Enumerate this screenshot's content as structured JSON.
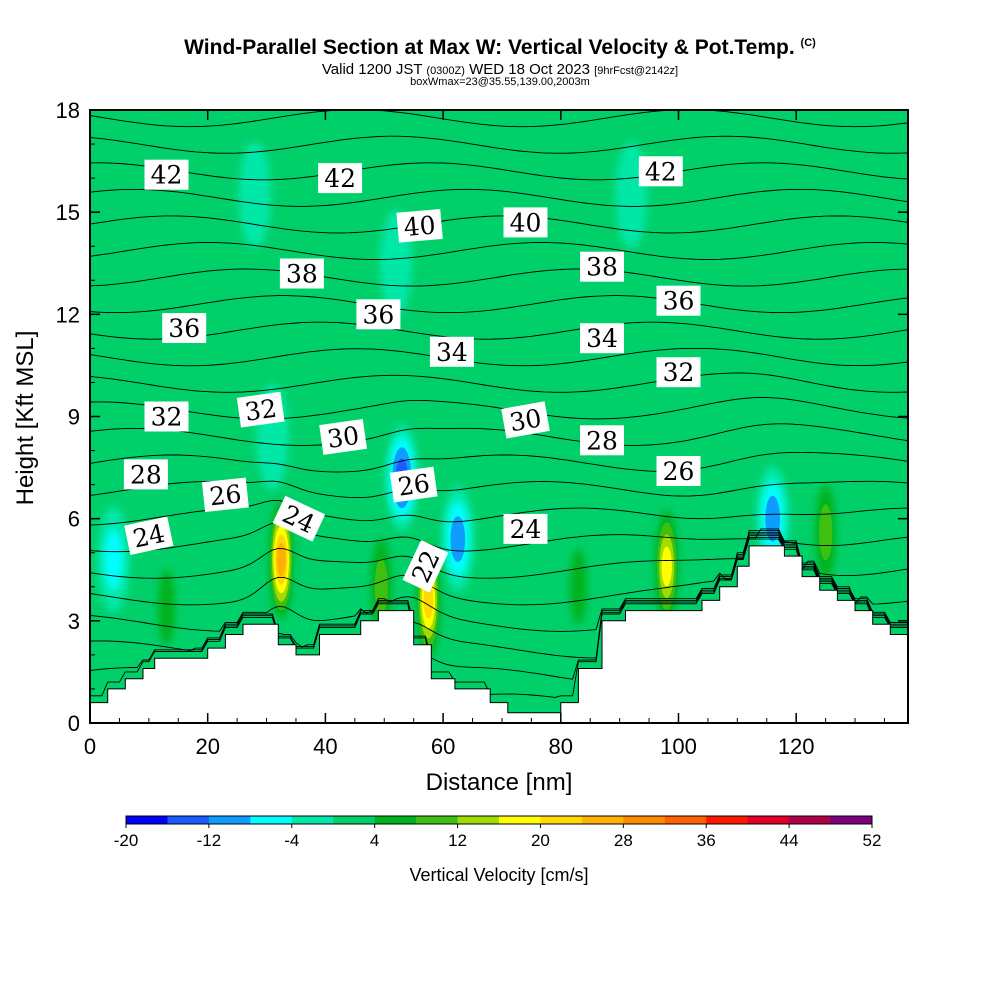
{
  "header": {
    "title": "Wind-Parallel Section at Max W: Vertical Velocity & Pot.Temp.",
    "title_mark": "(C)",
    "valid_prefix": "Valid 1200 JST",
    "valid_utc": "(0300Z)",
    "valid_date": "WED 18 Oct 2023",
    "forecast_info": "[9hrFcst@2142z]",
    "box_info": "boxWmax=23@35.55,139.00,2003m"
  },
  "chart_data": {
    "type": "heatmap",
    "xlabel": "Distance [nm]",
    "ylabel": "Height [Kft MSL]",
    "xlim": [
      0,
      139
    ],
    "ylim": [
      0,
      18
    ],
    "x_ticks": [
      0,
      20,
      40,
      60,
      80,
      100,
      120
    ],
    "y_ticks": [
      0,
      3,
      6,
      9,
      12,
      15,
      18
    ],
    "colorbar": {
      "label": "Vertical Velocity [cm/s]",
      "tick_labels": [
        "-20",
        "-12",
        "-4",
        "4",
        "12",
        "20",
        "28",
        "36",
        "44",
        "52"
      ],
      "levels": [
        -20,
        -16,
        -12,
        -8,
        -4,
        0,
        4,
        8,
        12,
        16,
        20,
        24,
        28,
        32,
        36,
        40,
        44,
        48,
        52,
        56
      ],
      "colors": [
        "#0000ff",
        "#1a5cff",
        "#0f9cff",
        "#00ffff",
        "#00e8a8",
        "#00d06a",
        "#00b21c",
        "#3fbf10",
        "#a0dc00",
        "#ffff00",
        "#ffd800",
        "#ffb000",
        "#ff8c00",
        "#ff6000",
        "#ff1800",
        "#e0002a",
        "#b0004a",
        "#7a0080"
      ]
    },
    "background_class": "0 to 4",
    "updrafts": [
      {
        "x": 32.5,
        "y": 4.8,
        "w": 28
      },
      {
        "x": 57.5,
        "y": 3.6,
        "w": 22
      },
      {
        "x": 98,
        "y": 4.6,
        "w": 18
      },
      {
        "x": 125,
        "y": 5.6,
        "w": 12
      },
      {
        "x": 49.5,
        "y": 4.0,
        "w": 10
      },
      {
        "x": 13,
        "y": 3.4,
        "w": 7
      },
      {
        "x": 83,
        "y": 4.0,
        "w": 6
      }
    ],
    "downdrafts": [
      {
        "x": 53,
        "y": 7.2,
        "w": -14
      },
      {
        "x": 62.5,
        "y": 5.4,
        "w": -10
      },
      {
        "x": 116,
        "y": 6.0,
        "w": -12
      },
      {
        "x": 4,
        "y": 4.8,
        "w": -6
      },
      {
        "x": 31,
        "y": 8.4,
        "w": -5
      },
      {
        "x": 52,
        "y": 13.5,
        "w": -5
      },
      {
        "x": 92,
        "y": 15.5,
        "w": -5
      },
      {
        "x": 28,
        "y": 15.5,
        "w": -4
      }
    ],
    "terrain": [
      [
        0,
        0.6
      ],
      [
        3,
        0.6
      ],
      [
        3,
        1.0
      ],
      [
        6,
        1.0
      ],
      [
        6,
        1.3
      ],
      [
        9,
        1.3
      ],
      [
        9,
        1.6
      ],
      [
        11,
        1.6
      ],
      [
        11,
        1.9
      ],
      [
        20,
        1.9
      ],
      [
        20,
        2.2
      ],
      [
        23,
        2.2
      ],
      [
        23,
        2.6
      ],
      [
        26,
        2.6
      ],
      [
        26,
        2.9
      ],
      [
        32,
        2.9
      ],
      [
        32,
        2.3
      ],
      [
        35,
        2.3
      ],
      [
        35,
        2.0
      ],
      [
        39,
        2.0
      ],
      [
        39,
        2.6
      ],
      [
        46,
        2.6
      ],
      [
        46,
        3.0
      ],
      [
        49,
        3.0
      ],
      [
        49,
        3.3
      ],
      [
        55,
        3.3
      ],
      [
        55,
        2.3
      ],
      [
        58,
        2.3
      ],
      [
        58,
        1.3
      ],
      [
        62,
        1.3
      ],
      [
        62,
        1.0
      ],
      [
        68,
        1.0
      ],
      [
        68,
        0.6
      ],
      [
        71,
        0.6
      ],
      [
        71,
        0.3
      ],
      [
        80,
        0.3
      ],
      [
        80,
        0.6
      ],
      [
        83,
        0.6
      ],
      [
        83,
        1.6
      ],
      [
        87,
        1.6
      ],
      [
        87,
        3.0
      ],
      [
        91,
        3.0
      ],
      [
        91,
        3.3
      ],
      [
        104,
        3.3
      ],
      [
        104,
        3.6
      ],
      [
        107,
        3.6
      ],
      [
        107,
        4.0
      ],
      [
        110,
        4.0
      ],
      [
        110,
        4.6
      ],
      [
        112,
        4.6
      ],
      [
        112,
        5.2
      ],
      [
        118,
        5.2
      ],
      [
        118,
        4.9
      ],
      [
        121,
        4.9
      ],
      [
        121,
        4.3
      ],
      [
        124,
        4.3
      ],
      [
        124,
        3.9
      ],
      [
        127,
        3.9
      ],
      [
        127,
        3.6
      ],
      [
        130,
        3.6
      ],
      [
        130,
        3.3
      ],
      [
        133,
        3.3
      ],
      [
        133,
        2.9
      ],
      [
        136,
        2.9
      ],
      [
        136,
        2.6
      ],
      [
        139,
        2.6
      ]
    ],
    "theta_contours": {
      "base": 20,
      "step": 1,
      "count": 23,
      "labels": [
        {
          "text": "42",
          "x": 13,
          "y": 16.1,
          "rot": 0
        },
        {
          "text": "42",
          "x": 42.5,
          "y": 16.0,
          "rot": 0
        },
        {
          "text": "42",
          "x": 97,
          "y": 16.2,
          "rot": 0
        },
        {
          "text": "40",
          "x": 56,
          "y": 14.6,
          "rot": -5
        },
        {
          "text": "40",
          "x": 74,
          "y": 14.7,
          "rot": 0
        },
        {
          "text": "38",
          "x": 36,
          "y": 13.2,
          "rot": 0
        },
        {
          "text": "38",
          "x": 87,
          "y": 13.4,
          "rot": 0
        },
        {
          "text": "36",
          "x": 16,
          "y": 11.6,
          "rot": 0
        },
        {
          "text": "36",
          "x": 49,
          "y": 12.0,
          "rot": 0
        },
        {
          "text": "36",
          "x": 100,
          "y": 12.4,
          "rot": 0
        },
        {
          "text": "34",
          "x": 61.5,
          "y": 10.9,
          "rot": 0
        },
        {
          "text": "34",
          "x": 87,
          "y": 11.3,
          "rot": 0
        },
        {
          "text": "32",
          "x": 13,
          "y": 9.0,
          "rot": 0
        },
        {
          "text": "32",
          "x": 29,
          "y": 9.2,
          "rot": -8
        },
        {
          "text": "32",
          "x": 100,
          "y": 10.3,
          "rot": 0
        },
        {
          "text": "30",
          "x": 43,
          "y": 8.4,
          "rot": -8
        },
        {
          "text": "30",
          "x": 74,
          "y": 8.9,
          "rot": -10
        },
        {
          "text": "28",
          "x": 9.5,
          "y": 7.3,
          "rot": 0
        },
        {
          "text": "28",
          "x": 87,
          "y": 8.3,
          "rot": 0
        },
        {
          "text": "26",
          "x": 23,
          "y": 6.7,
          "rot": -6
        },
        {
          "text": "26",
          "x": 55,
          "y": 7.0,
          "rot": -8
        },
        {
          "text": "26",
          "x": 100,
          "y": 7.4,
          "rot": 0
        },
        {
          "text": "24",
          "x": 10,
          "y": 5.5,
          "rot": -12
        },
        {
          "text": "24",
          "x": 35.5,
          "y": 6.0,
          "rot": 25
        },
        {
          "text": "24",
          "x": 74,
          "y": 5.7,
          "rot": 0
        },
        {
          "text": "22",
          "x": 57,
          "y": 4.6,
          "rot": -65
        }
      ]
    }
  }
}
